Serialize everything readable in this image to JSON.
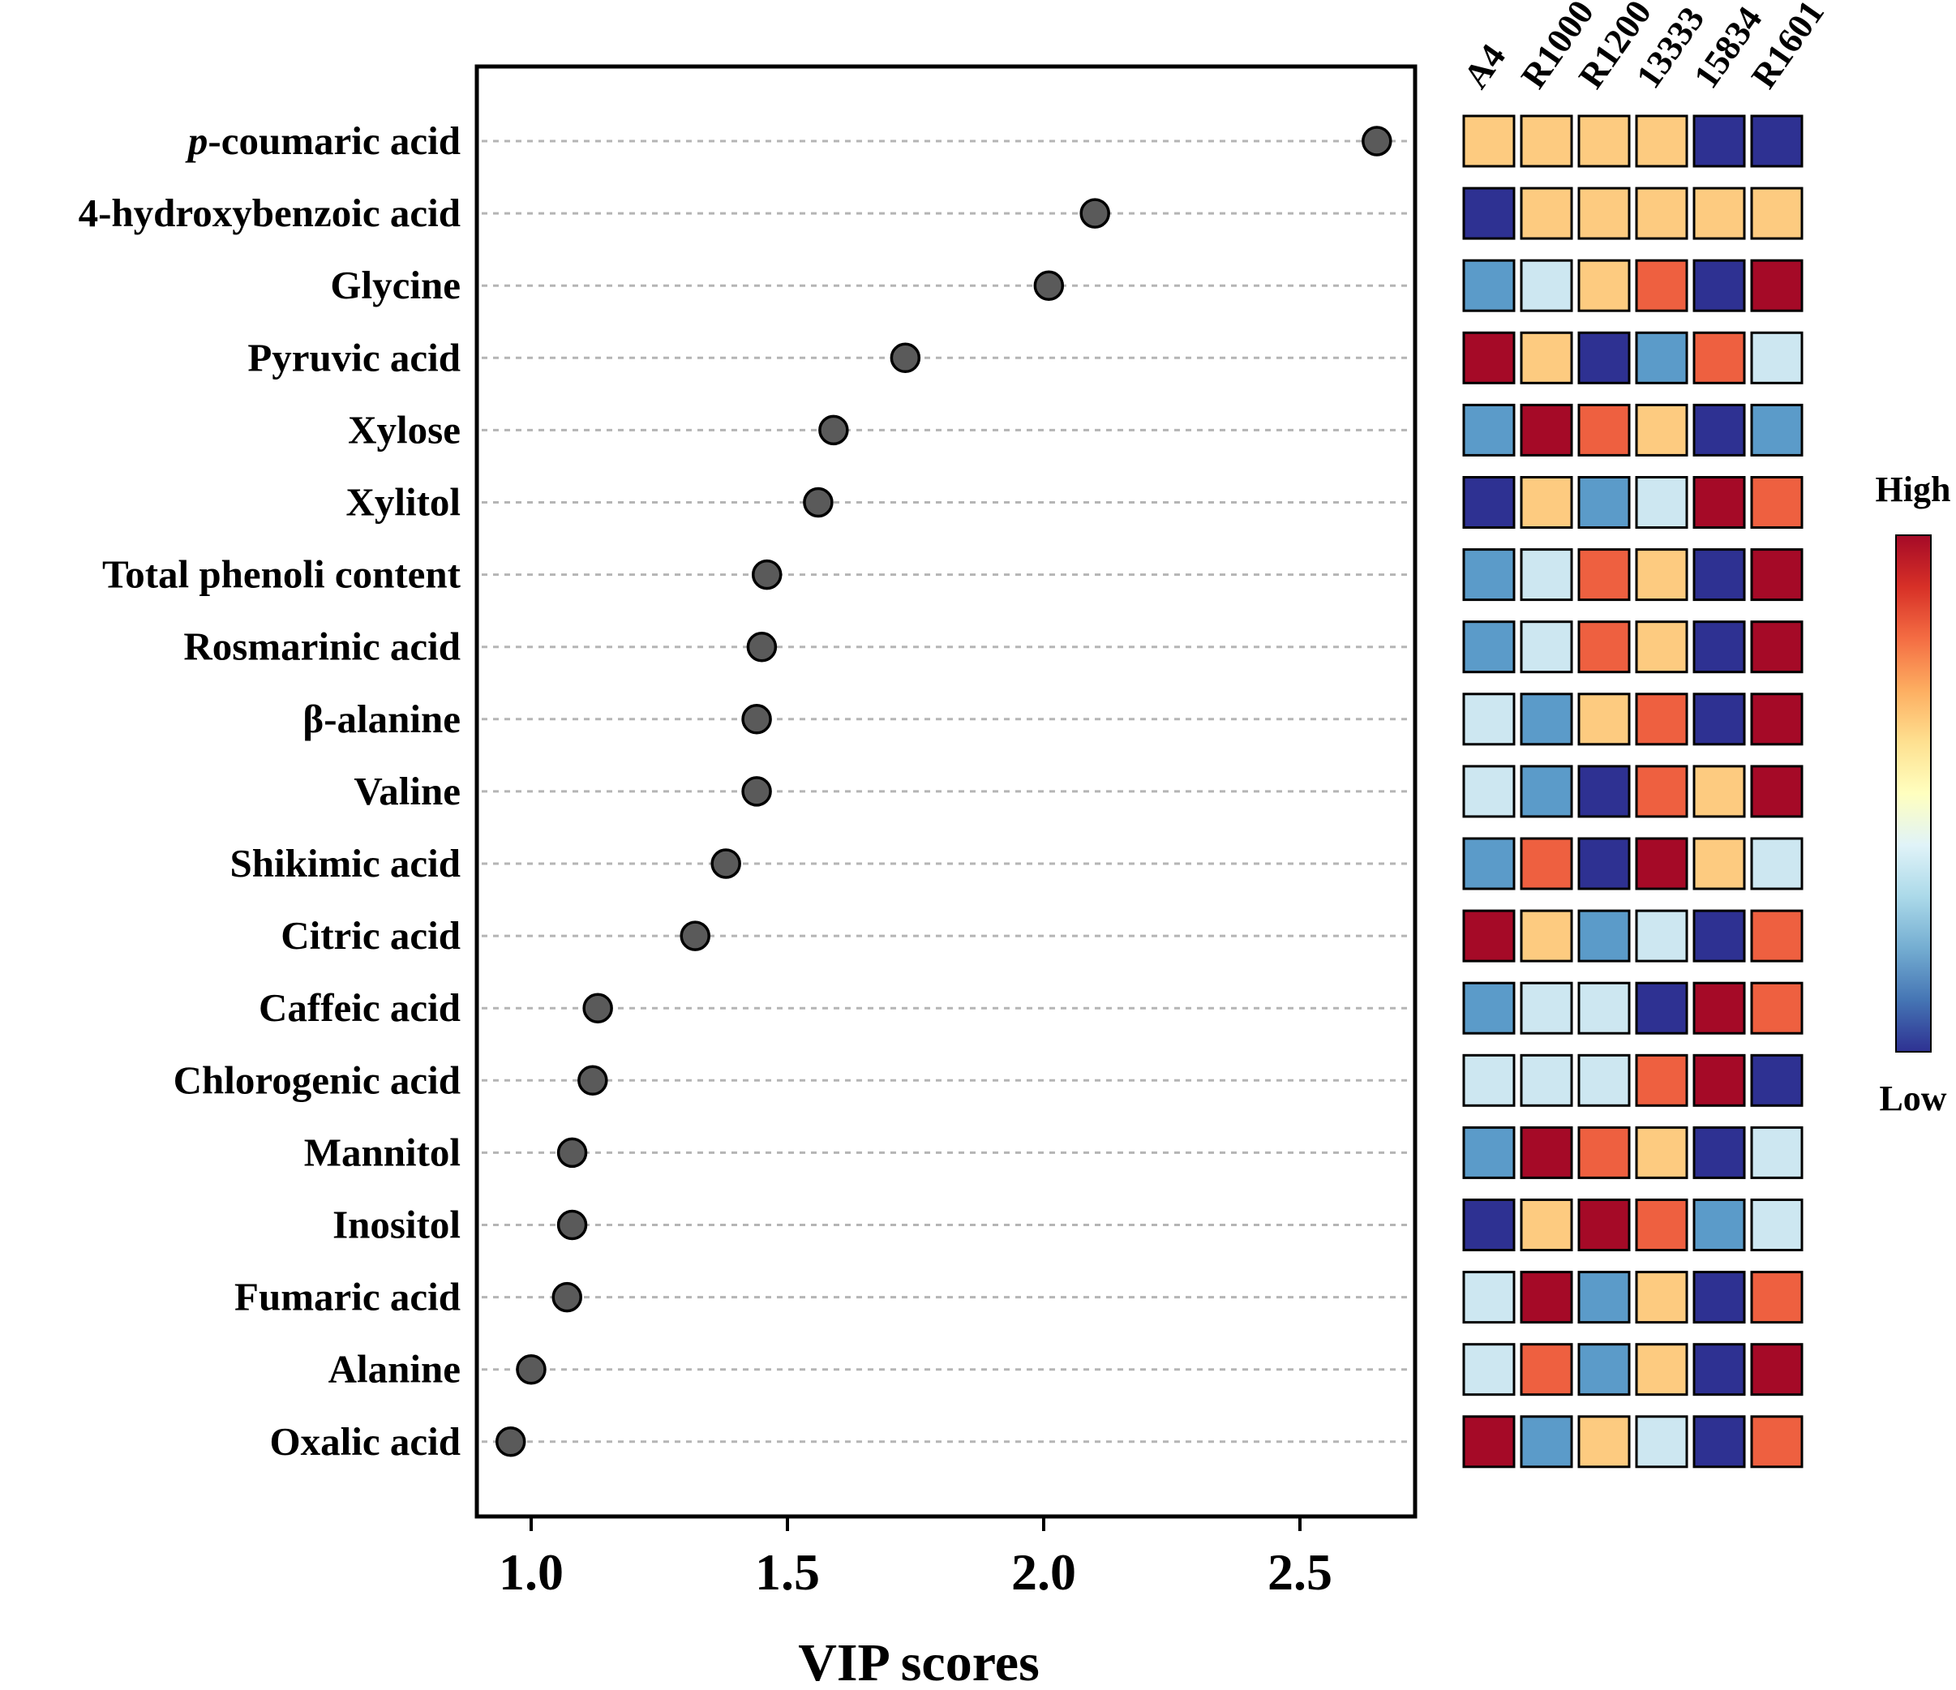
{
  "chart_data": {
    "type": "scatter",
    "subtype": "lollipop dot plot with heatmap",
    "xlabel": "VIP scores",
    "xlim": [
      0.9,
      2.75
    ],
    "x_ticks": [
      "1.0",
      "1.5",
      "2.0",
      "2.5"
    ],
    "x_tick_values": [
      1.0,
      1.5,
      2.0,
      2.5
    ],
    "point_color": "#5a5a5a",
    "metabolites": [
      {
        "prefix": "p",
        "name": "-coumaric acid",
        "vip": 2.65
      },
      {
        "prefix": "",
        "name": "4-hydroxybenzoic acid",
        "vip": 2.1
      },
      {
        "prefix": "",
        "name": "Glycine",
        "vip": 2.01
      },
      {
        "prefix": "",
        "name": "Pyruvic acid",
        "vip": 1.73
      },
      {
        "prefix": "",
        "name": "Xylose",
        "vip": 1.59
      },
      {
        "prefix": "",
        "name": "Xylitol",
        "vip": 1.56
      },
      {
        "prefix": "",
        "name": "Total phenoli content",
        "vip": 1.46
      },
      {
        "prefix": "",
        "name": "Rosmarinic acid",
        "vip": 1.45
      },
      {
        "prefix": "",
        "name": "β-alanine",
        "vip": 1.44
      },
      {
        "prefix": "",
        "name": "Valine",
        "vip": 1.44
      },
      {
        "prefix": "",
        "name": "Shikimic acid",
        "vip": 1.38
      },
      {
        "prefix": "",
        "name": "Citric acid",
        "vip": 1.32
      },
      {
        "prefix": "",
        "name": "Caffeic acid",
        "vip": 1.13
      },
      {
        "prefix": "",
        "name": "Chlorogenic acid",
        "vip": 1.12
      },
      {
        "prefix": "",
        "name": "Mannitol",
        "vip": 1.08
      },
      {
        "prefix": "",
        "name": "Inositol",
        "vip": 1.08
      },
      {
        "prefix": "",
        "name": "Fumaric acid",
        "vip": 1.07
      },
      {
        "prefix": "",
        "name": "Alanine",
        "vip": 1.0
      },
      {
        "prefix": "",
        "name": "Oxalic acid",
        "vip": 0.96
      }
    ],
    "heatmap": {
      "columns": [
        "A4",
        "R1000",
        "R1200",
        "13333",
        "15834",
        "R1601"
      ],
      "levels": {
        "1": "#2e3192",
        "2": "#5b9bc9",
        "3": "#cde7f1",
        "4": "#fdcb80",
        "5": "#ee6040",
        "6": "#a50a27"
      },
      "rows": [
        [
          4,
          4,
          4,
          4,
          1,
          1
        ],
        [
          1,
          4,
          4,
          4,
          4,
          4
        ],
        [
          2,
          3,
          4,
          5,
          1,
          6
        ],
        [
          6,
          4,
          1,
          2,
          5,
          3
        ],
        [
          2,
          6,
          5,
          4,
          1,
          2
        ],
        [
          1,
          4,
          2,
          3,
          6,
          5
        ],
        [
          2,
          3,
          5,
          4,
          1,
          6
        ],
        [
          2,
          3,
          5,
          4,
          1,
          6
        ],
        [
          3,
          2,
          4,
          5,
          1,
          6
        ],
        [
          3,
          2,
          1,
          5,
          4,
          6
        ],
        [
          2,
          5,
          1,
          6,
          4,
          3
        ],
        [
          6,
          4,
          2,
          3,
          1,
          5
        ],
        [
          2,
          3,
          3,
          1,
          6,
          5
        ],
        [
          3,
          3,
          3,
          5,
          6,
          1
        ],
        [
          2,
          6,
          5,
          4,
          1,
          3
        ],
        [
          1,
          4,
          6,
          5,
          2,
          3
        ],
        [
          3,
          6,
          2,
          4,
          1,
          5
        ],
        [
          3,
          5,
          2,
          4,
          1,
          6
        ],
        [
          6,
          2,
          4,
          3,
          1,
          5
        ]
      ]
    },
    "colorbar": {
      "high_label": "High",
      "low_label": "Low",
      "gradient": [
        "#a50a27",
        "#d73027",
        "#f46d43",
        "#fdae61",
        "#fee090",
        "#ffffbf",
        "#e0f3f8",
        "#abd9e9",
        "#74add1",
        "#4575b4",
        "#2e3192"
      ]
    }
  }
}
